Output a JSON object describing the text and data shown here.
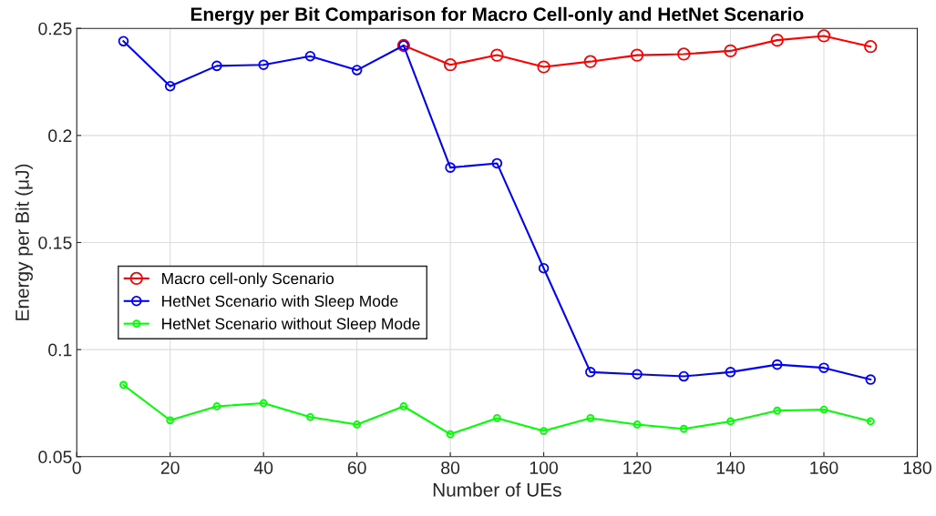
{
  "chart_data": {
    "type": "line",
    "title": "Energy per Bit Comparison for Macro Cell-only and HetNet Scenario",
    "xlabel": "Number of UEs",
    "ylabel": "Energy per Bit (μJ)",
    "x": [
      10,
      20,
      30,
      40,
      50,
      60,
      70,
      80,
      90,
      100,
      110,
      120,
      130,
      140,
      150,
      160,
      170
    ],
    "series": [
      {
        "name": "Macro cell-only Scenario",
        "color": "#ff0000",
        "values": [
          null,
          null,
          null,
          null,
          null,
          null,
          0.242,
          0.233,
          0.2375,
          0.232,
          0.2345,
          0.2375,
          0.238,
          0.2395,
          0.2445,
          0.2465,
          0.2415
        ]
      },
      {
        "name": "HetNet Scenario with Sleep Mode",
        "color": "#0000ff",
        "values": [
          0.244,
          0.223,
          0.2325,
          0.233,
          0.237,
          0.2305,
          0.242,
          0.185,
          0.187,
          0.138,
          0.0895,
          0.0885,
          0.0875,
          0.0895,
          0.093,
          0.0915,
          0.086
        ]
      },
      {
        "name": "HetNet Scenario without Sleep Mode",
        "color": "#00ff00",
        "values": [
          0.0835,
          0.067,
          0.0735,
          0.075,
          0.0685,
          0.065,
          0.0735,
          0.0605,
          0.068,
          0.062,
          0.068,
          0.065,
          0.063,
          0.0665,
          0.0715,
          0.072,
          0.0665
        ]
      }
    ],
    "xlim": [
      0,
      180
    ],
    "xticks": [
      0,
      20,
      40,
      60,
      80,
      100,
      120,
      140,
      160,
      180
    ],
    "ylim": [
      0.05,
      0.25
    ],
    "yticks": [
      0.05,
      0.1,
      0.15,
      0.2,
      0.25
    ],
    "grid": true,
    "legend": "center left",
    "marker": "circle",
    "line_style": "solid"
  }
}
